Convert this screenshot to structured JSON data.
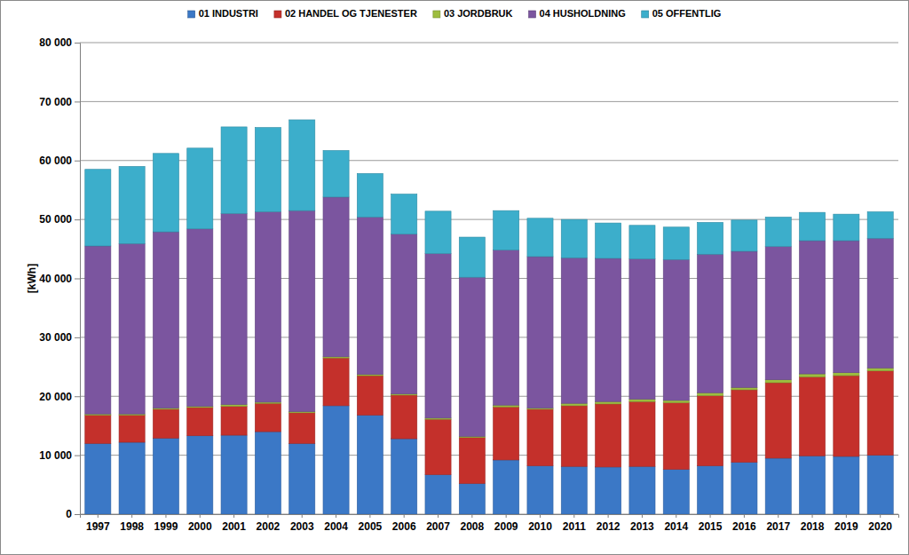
{
  "chart_data": {
    "type": "bar",
    "stacked": true,
    "grid": true,
    "legend": "top",
    "y_label": "[kWh]",
    "categories": [
      "1997",
      "1998",
      "1999",
      "2000",
      "2001",
      "2002",
      "2003",
      "2004",
      "2005",
      "2006",
      "2007",
      "2008",
      "2009",
      "2010",
      "2011",
      "2012",
      "2013",
      "2014",
      "2015",
      "2016",
      "2017",
      "2018",
      "2019",
      "2020"
    ],
    "ylim": [
      0,
      80000
    ],
    "yticks": [
      0,
      {
        "value": 10000,
        "label": "10 000"
      },
      {
        "value": 20000,
        "label": "20 000"
      },
      {
        "value": 30000,
        "label": "30 000"
      },
      {
        "value": 40000,
        "label": "40 000"
      },
      {
        "value": 50000,
        "label": "50 000"
      },
      {
        "value": 60000,
        "label": "60 000"
      },
      {
        "value": 70000,
        "label": "70 000"
      },
      {
        "value": 80000,
        "label": "80 000"
      }
    ],
    "series": [
      {
        "name": "01 INDUSTRI",
        "color": "#3b78c6",
        "values": [
          12000,
          12200,
          12900,
          13300,
          13400,
          14000,
          12000,
          18400,
          16800,
          12800,
          6700,
          5200,
          9200,
          8200,
          8100,
          8000,
          8100,
          7600,
          8200,
          8800,
          9500,
          9900,
          9800,
          10000
        ]
      },
      {
        "name": "02 HANDEL OG TJENESTER",
        "color": "#c4302b",
        "values": [
          4800,
          4600,
          4900,
          4800,
          4900,
          4800,
          5200,
          8100,
          6700,
          7400,
          9400,
          7800,
          9000,
          9600,
          10300,
          10700,
          11000,
          11300,
          11900,
          12300,
          12800,
          13400,
          13700,
          14300
        ]
      },
      {
        "name": "03 JORDBRUK",
        "color": "#9dbd3e",
        "values": [
          200,
          200,
          200,
          200,
          300,
          200,
          200,
          200,
          200,
          200,
          200,
          200,
          300,
          200,
          400,
          400,
          400,
          400,
          500,
          400,
          500,
          500,
          500,
          500
        ]
      },
      {
        "name": "04 HUSHOLDNING",
        "color": "#7b559f",
        "values": [
          28500,
          28900,
          29900,
          30100,
          32400,
          32300,
          34100,
          27100,
          26700,
          27100,
          27900,
          27000,
          26300,
          25700,
          24700,
          24300,
          23800,
          23900,
          23500,
          23100,
          22600,
          22600,
          22400,
          22000
        ]
      },
      {
        "name": "05 OFFENTLIG",
        "color": "#3caecb",
        "values": [
          13000,
          13100,
          13300,
          13700,
          14700,
          14300,
          15400,
          7900,
          7400,
          6800,
          7200,
          6800,
          6700,
          6500,
          6500,
          6000,
          5700,
          5500,
          5400,
          5300,
          5000,
          4800,
          4500,
          4500
        ]
      }
    ]
  }
}
